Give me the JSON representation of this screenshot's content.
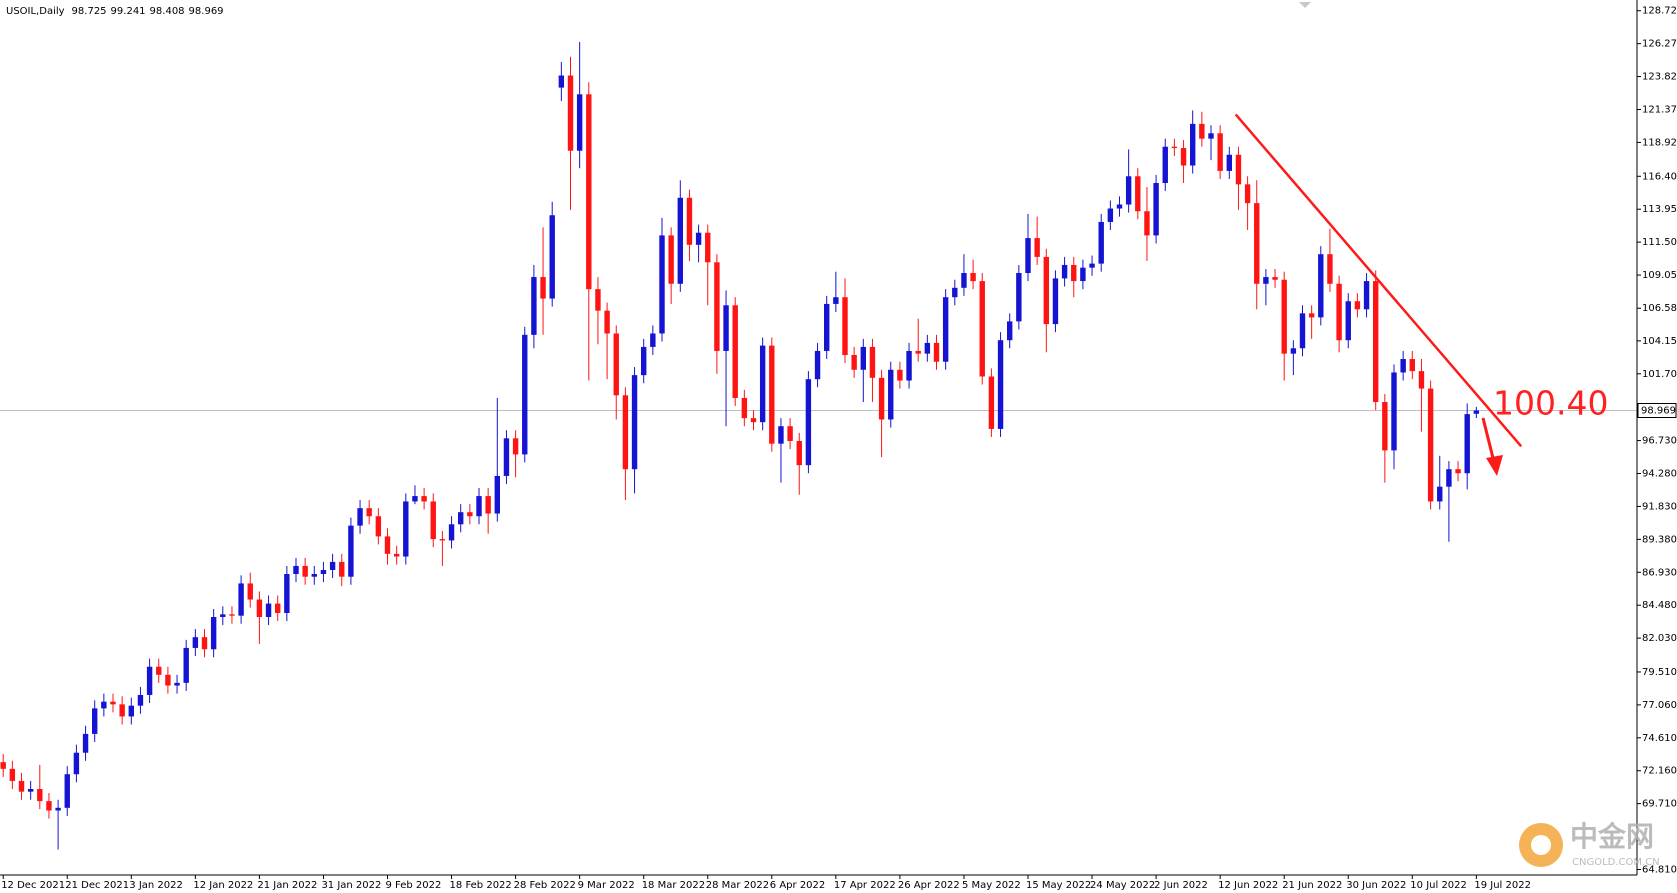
{
  "chart_data": {
    "type": "candlestick",
    "title": "USOIL,Daily",
    "categories": [
      "12 Dec 2021",
      null,
      null,
      null,
      null,
      null,
      null,
      "21 Dec 2021",
      null,
      null,
      null,
      null,
      null,
      null,
      "3 Jan 2022",
      null,
      null,
      null,
      null,
      null,
      null,
      "12 Jan 2022",
      null,
      null,
      null,
      null,
      null,
      null,
      "21 Jan 2022",
      null,
      null,
      null,
      null,
      null,
      null,
      "31 Jan 2022",
      null,
      null,
      null,
      null,
      null,
      null,
      "9 Feb 2022",
      null,
      null,
      null,
      null,
      null,
      null,
      "18 Feb 2022",
      null,
      null,
      null,
      null,
      null,
      null,
      "28 Feb 2022",
      null,
      null,
      null,
      null,
      null,
      null,
      "9 Mar 2022",
      null,
      null,
      null,
      null,
      null,
      null,
      "18 Mar 2022",
      null,
      null,
      null,
      null,
      null,
      null,
      "28 Mar 2022",
      null,
      null,
      null,
      null,
      null,
      null,
      "6 Apr 2022",
      null,
      null,
      null,
      null,
      null,
      null,
      "17 Apr 2022",
      null,
      null,
      null,
      null,
      null,
      null,
      "26 Apr 2022",
      null,
      null,
      null,
      null,
      null,
      null,
      "5 May 2022",
      null,
      null,
      null,
      null,
      null,
      null,
      "15 May 2022",
      null,
      null,
      null,
      null,
      null,
      null,
      "24 May 2022",
      null,
      null,
      null,
      null,
      null,
      null,
      "2 Jun 2022",
      null,
      null,
      null,
      null,
      null,
      null,
      "12 Jun 2022",
      null,
      null,
      null,
      null,
      null,
      null,
      "21 Jun 2022",
      null,
      null,
      null,
      null,
      null,
      null,
      "30 Jun 2022",
      null,
      null,
      null,
      null,
      null,
      null,
      "10 Jul 2022",
      null,
      null,
      null,
      null,
      null,
      null,
      "19 Jul 2022"
    ],
    "open": [
      72.8,
      72.3,
      71.4,
      70.6,
      70.8,
      69.9,
      69.2,
      69.4,
      71.9,
      73.5,
      74.9,
      76.8,
      77.3,
      77.1,
      76.2,
      77.0,
      77.8,
      79.9,
      79.3,
      78.5,
      78.7,
      81.3,
      82.1,
      81.2,
      83.6,
      83.8,
      83.7,
      86.1,
      84.9,
      83.6,
      84.6,
      83.9,
      86.8,
      87.4,
      86.6,
      86.8,
      87.1,
      87.7,
      86.6,
      90.4,
      91.7,
      91.1,
      89.6,
      88.3,
      88.1,
      92.2,
      92.6,
      92.2,
      89.4,
      89.3,
      90.5,
      91.4,
      91.1,
      92.6,
      91.3,
      94.1,
      96.9,
      95.7,
      104.6,
      108.9,
      107.3,
      123.0,
      123.9,
      118.3,
      122.5,
      108.0,
      106.4,
      104.7,
      100.1,
      94.6,
      101.6,
      103.7,
      104.7,
      112.0,
      108.4,
      114.8,
      111.3,
      112.2,
      110.0,
      103.4,
      106.8,
      99.9,
      98.4,
      98.1,
      103.8,
      96.5,
      97.8,
      96.7,
      94.9,
      101.3,
      103.4,
      106.9,
      107.4,
      103.1,
      102.0,
      103.7,
      101.4,
      98.3,
      102.0,
      101.2,
      103.4,
      103.2,
      104.0,
      102.6,
      107.4,
      108.1,
      109.2,
      108.6,
      101.5,
      97.6,
      104.2,
      105.6,
      109.2,
      111.8,
      110.4,
      105.4,
      108.8,
      109.8,
      108.6,
      109.6,
      109.9,
      113.0,
      114.0,
      114.3,
      116.4,
      113.8,
      112.0,
      115.9,
      118.6,
      118.5,
      117.2,
      120.3,
      119.2,
      119.6,
      116.8,
      118.0,
      115.8,
      114.4,
      108.4,
      108.9,
      108.7,
      103.2,
      103.6,
      106.2,
      105.9,
      110.6,
      108.4,
      104.2,
      107.1,
      106.5,
      108.6,
      99.6,
      96.0,
      101.8,
      102.8,
      101.9,
      100.6,
      92.2,
      93.3,
      94.6,
      94.3,
      98.725
    ],
    "high": [
      73.4,
      72.9,
      72.0,
      71.4,
      72.6,
      70.5,
      70.0,
      72.5,
      74.1,
      75.5,
      77.4,
      77.9,
      77.9,
      77.7,
      77.6,
      78.4,
      80.5,
      80.5,
      79.9,
      79.3,
      81.9,
      82.7,
      82.7,
      84.2,
      84.4,
      84.4,
      86.7,
      86.9,
      85.5,
      85.2,
      85.2,
      87.4,
      88.0,
      88.0,
      87.4,
      87.7,
      88.3,
      88.3,
      91.0,
      92.3,
      92.3,
      91.7,
      90.2,
      88.9,
      92.8,
      93.4,
      93.2,
      92.8,
      90.0,
      91.1,
      92.0,
      92.0,
      93.2,
      93.2,
      99.9,
      97.5,
      97.5,
      105.2,
      109.8,
      112.6,
      114.5,
      124.9,
      125.3,
      126.4,
      123.4,
      108.9,
      107.0,
      105.3,
      100.7,
      102.2,
      104.3,
      105.3,
      113.3,
      112.6,
      116.1,
      115.4,
      112.8,
      112.8,
      110.6,
      107.9,
      107.4,
      100.5,
      99.0,
      104.4,
      104.4,
      98.4,
      98.4,
      97.3,
      101.9,
      104.0,
      107.5,
      109.3,
      108.8,
      103.7,
      104.3,
      104.3,
      102.0,
      102.6,
      102.6,
      104.0,
      105.8,
      104.6,
      104.6,
      108.0,
      108.7,
      110.6,
      110.2,
      109.2,
      102.1,
      104.8,
      106.2,
      109.8,
      113.6,
      113.4,
      111.0,
      109.4,
      110.4,
      110.4,
      110.2,
      110.5,
      113.6,
      114.6,
      114.9,
      118.4,
      117.0,
      115.6,
      116.5,
      119.2,
      119.2,
      119.1,
      121.3,
      121.2,
      120.2,
      120.2,
      118.6,
      118.6,
      116.4,
      116.1,
      109.5,
      109.5,
      109.3,
      104.2,
      106.8,
      106.8,
      111.2,
      112.5,
      109.0,
      107.7,
      107.7,
      109.2,
      109.4,
      100.2,
      102.4,
      103.4,
      103.4,
      102.8,
      101.2,
      95.6,
      95.2,
      95.2,
      99.5,
      99.241
    ],
    "low": [
      71.7,
      70.8,
      70.0,
      70.0,
      69.3,
      68.6,
      66.3,
      68.8,
      71.3,
      72.9,
      74.3,
      76.2,
      76.5,
      75.6,
      75.6,
      76.4,
      77.2,
      78.7,
      77.9,
      77.9,
      78.1,
      80.7,
      80.6,
      80.6,
      83.0,
      83.1,
      83.1,
      84.3,
      81.6,
      83.0,
      83.3,
      83.3,
      86.2,
      86.0,
      86.0,
      86.2,
      86.5,
      85.9,
      86.0,
      89.8,
      90.5,
      89.0,
      87.5,
      87.5,
      87.5,
      92.0,
      91.6,
      88.8,
      87.4,
      88.7,
      89.9,
      90.5,
      90.5,
      89.8,
      90.7,
      93.5,
      94.0,
      95.1,
      103.6,
      104.6,
      106.7,
      122.0,
      113.9,
      117.0,
      101.2,
      103.9,
      101.3,
      98.3,
      92.3,
      92.8,
      101.0,
      103.1,
      104.1,
      106.9,
      107.8,
      110.1,
      110.0,
      106.8,
      101.7,
      97.8,
      99.3,
      97.8,
      97.5,
      97.5,
      95.9,
      93.6,
      96.1,
      92.7,
      94.3,
      100.7,
      102.8,
      106.3,
      102.5,
      101.4,
      99.6,
      99.6,
      95.5,
      97.7,
      100.6,
      100.6,
      102.6,
      102.6,
      102.0,
      102.0,
      106.8,
      107.5,
      108.0,
      100.9,
      97.0,
      97.0,
      103.6,
      105.0,
      108.6,
      109.8,
      103.3,
      104.8,
      108.2,
      107.4,
      108.0,
      109.0,
      109.3,
      112.4,
      113.4,
      113.7,
      113.2,
      110.1,
      111.4,
      115.3,
      117.9,
      115.9,
      116.6,
      118.6,
      117.6,
      116.2,
      116.2,
      113.9,
      112.4,
      106.5,
      106.8,
      108.1,
      101.2,
      101.6,
      103.0,
      104.3,
      105.3,
      107.8,
      103.3,
      103.6,
      105.9,
      105.9,
      99.0,
      93.6,
      94.6,
      101.2,
      101.3,
      97.4,
      91.6,
      91.6,
      89.2,
      93.7,
      93.1,
      98.408
    ],
    "close": [
      72.3,
      71.4,
      70.6,
      70.8,
      69.9,
      69.2,
      69.4,
      71.9,
      73.5,
      74.9,
      76.8,
      77.3,
      77.1,
      76.2,
      77.0,
      77.8,
      79.9,
      79.3,
      78.5,
      78.7,
      81.3,
      82.1,
      81.2,
      83.6,
      83.8,
      83.7,
      86.1,
      84.9,
      83.6,
      84.6,
      83.9,
      86.8,
      87.4,
      86.6,
      86.8,
      87.1,
      87.7,
      86.6,
      90.4,
      91.7,
      91.1,
      89.6,
      88.3,
      88.1,
      92.2,
      92.6,
      92.2,
      89.4,
      89.3,
      90.5,
      91.4,
      91.1,
      92.6,
      91.3,
      94.1,
      96.9,
      95.7,
      104.6,
      108.9,
      107.3,
      113.5,
      123.9,
      118.3,
      122.5,
      108.0,
      106.4,
      104.7,
      100.1,
      94.6,
      101.6,
      103.7,
      104.7,
      112.0,
      108.4,
      114.8,
      111.3,
      112.2,
      110.0,
      103.4,
      106.8,
      99.9,
      98.4,
      98.1,
      103.8,
      96.5,
      97.8,
      96.7,
      94.9,
      101.3,
      103.4,
      106.9,
      107.4,
      103.1,
      102.0,
      103.7,
      101.4,
      98.3,
      102.0,
      101.2,
      103.4,
      103.2,
      104.0,
      102.6,
      107.4,
      108.1,
      109.2,
      108.6,
      101.5,
      97.6,
      104.2,
      105.6,
      109.2,
      111.8,
      110.4,
      105.4,
      108.8,
      109.8,
      108.6,
      109.6,
      109.9,
      113.0,
      114.0,
      114.3,
      116.4,
      113.8,
      112.0,
      115.9,
      118.6,
      118.5,
      117.2,
      120.3,
      119.2,
      119.6,
      116.8,
      118.0,
      115.8,
      114.4,
      108.4,
      108.9,
      108.7,
      103.2,
      103.6,
      106.2,
      105.9,
      110.6,
      108.4,
      104.2,
      107.1,
      106.5,
      108.6,
      99.6,
      96.0,
      101.8,
      102.8,
      101.9,
      100.6,
      92.2,
      93.3,
      94.6,
      94.3,
      98.7,
      98.969
    ],
    "up_color": "#1414d2",
    "down_color": "#ff1414",
    "price_line_color": "#c0c0c0",
    "ylim": [
      64.4,
      129.37
    ],
    "yticks": [
      {
        "value": 128.72,
        "label": "128.720"
      },
      {
        "value": 126.27,
        "label": "126.270"
      },
      {
        "value": 123.82,
        "label": "123.820"
      },
      {
        "value": 121.37,
        "label": "121.370"
      },
      {
        "value": 118.92,
        "label": "118.920"
      },
      {
        "value": 116.4,
        "label": "116.400"
      },
      {
        "value": 113.95,
        "label": "113.950"
      },
      {
        "value": 111.5,
        "label": "111.500"
      },
      {
        "value": 109.05,
        "label": "109.050"
      },
      {
        "value": 106.58,
        "label": "106.580"
      },
      {
        "value": 104.15,
        "label": "104.150"
      },
      {
        "value": 101.7,
        "label": "101.700"
      },
      {
        "value": 96.73,
        "label": "96.730"
      },
      {
        "value": 94.28,
        "label": "94.280"
      },
      {
        "value": 91.83,
        "label": "91.830"
      },
      {
        "value": 89.38,
        "label": "89.380"
      },
      {
        "value": 86.93,
        "label": "86.930"
      },
      {
        "value": 84.48,
        "label": "84.480"
      },
      {
        "value": 82.03,
        "label": "82.030"
      },
      {
        "value": 79.51,
        "label": "79.510"
      },
      {
        "value": 77.06,
        "label": "77.060"
      },
      {
        "value": 74.61,
        "label": "74.610"
      },
      {
        "value": 72.16,
        "label": "72.160"
      },
      {
        "value": 69.71,
        "label": "69.710"
      },
      {
        "value": 64.81,
        "label": "64.810"
      }
    ],
    "trendline": {
      "x": [
        134.7,
        165.9
      ],
      "y": [
        121.0,
        96.3
      ],
      "color": "#ff1a1a"
    },
    "annotation": "100.40",
    "watermark": {
      "name": "中金网",
      "site": "CNGOLD.COM.CN"
    }
  }
}
